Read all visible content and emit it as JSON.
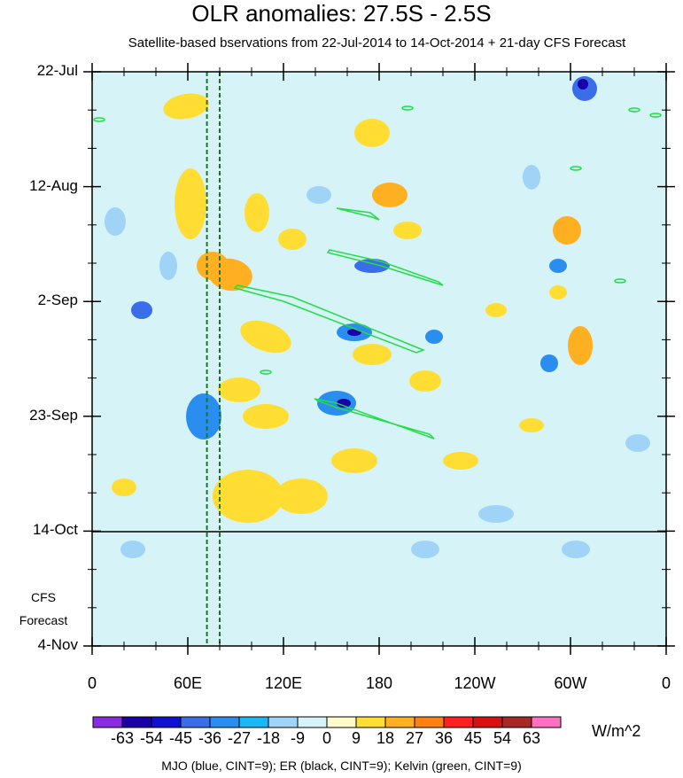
{
  "title": "OLR anomalies: 27.5S - 2.5S",
  "subtitle": "Satellite-based bservations from 22-Jul-2014 to 14-Oct-2014 + 21-day CFS Forecast",
  "forecast_label_1": "CFS",
  "forecast_label_2": "Forecast",
  "caption": "MJO (blue, CINT=9); ER (black, CINT=9); Kelvin (green, CINT=9)",
  "units": "W/m^2",
  "colors": {
    "background": "#d6f3f8",
    "forecast_divider": "#000000",
    "kelvin": "#22dd44",
    "mjo_dashed": "#1a7a1a"
  },
  "chart_data": {
    "type": "heatmap",
    "title": "OLR anomalies: 27.5S - 2.5S",
    "x_axis": {
      "quantity": "longitude",
      "ticks": [
        "0",
        "60E",
        "120E",
        "180",
        "120W",
        "60W",
        "0"
      ],
      "range": [
        0,
        360
      ]
    },
    "y_axis": {
      "quantity": "date",
      "ticks": [
        "22-Jul",
        "12-Aug",
        "2-Sep",
        "23-Sep",
        "14-Oct",
        "4-Nov"
      ],
      "range": [
        "2014-07-22",
        "2014-11-04"
      ],
      "observation_end": "2014-10-14"
    },
    "colorbar": {
      "labels": [
        "-63",
        "-54",
        "-45",
        "-36",
        "-27",
        "-18",
        "-9",
        "0",
        "9",
        "18",
        "27",
        "36",
        "45",
        "54",
        "63"
      ],
      "colors": [
        "#8a2be2",
        "#1a00a8",
        "#1010d0",
        "#3a6ee8",
        "#2a8ef0",
        "#19b7f5",
        "#9fd4f7",
        "#d6f3f8",
        "#fffccc",
        "#ffdd33",
        "#ffb020",
        "#ff8010",
        "#ff2020",
        "#d81010",
        "#a82828",
        "#ff70c0"
      ]
    },
    "mjo_dashed_lines_lon": [
      72,
      80
    ]
  }
}
